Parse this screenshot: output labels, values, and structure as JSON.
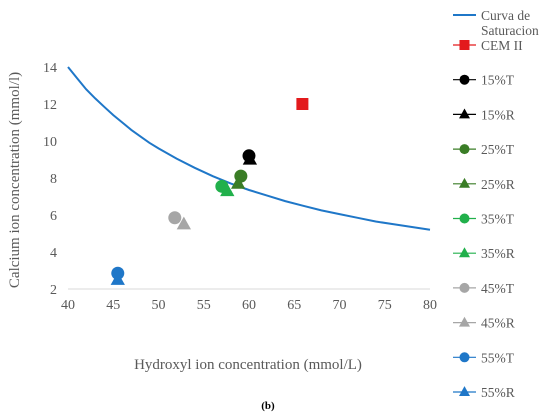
{
  "chart_data": {
    "type": "scatter",
    "caption": "(b)",
    "xlabel": "Hydroxyl ion concentration (mmol/L)",
    "ylabel": "Calcium ion concentration (mmol/l)",
    "xlim": [
      40,
      80
    ],
    "ylim": [
      2,
      14
    ],
    "xticks": [
      40,
      45,
      50,
      55,
      60,
      65,
      70,
      75,
      80
    ],
    "yticks": [
      2,
      4,
      6,
      8,
      10,
      12,
      14
    ],
    "grid": false,
    "legend_position": "right",
    "curve": {
      "name_lines": [
        "Curva de",
        "Saturacion"
      ],
      "color": "#1f77c8",
      "x": [
        40,
        41,
        42,
        43,
        44,
        45,
        46,
        47,
        48,
        49,
        50,
        52,
        54,
        56,
        58,
        60,
        62,
        64,
        66,
        68,
        70,
        72,
        74,
        76,
        78,
        80
      ],
      "y": [
        14.0,
        13.4,
        12.8,
        12.3,
        11.85,
        11.4,
        11.0,
        10.6,
        10.25,
        9.9,
        9.6,
        9.05,
        8.55,
        8.1,
        7.7,
        7.35,
        7.05,
        6.75,
        6.5,
        6.25,
        6.05,
        5.85,
        5.65,
        5.5,
        5.35,
        5.2
      ]
    },
    "series": [
      {
        "name": "CEM II",
        "marker": "square",
        "color": "#e31a1c",
        "x": 65.9,
        "y": 12.0
      },
      {
        "name": "15%T",
        "marker": "circle",
        "color": "#000000",
        "x": 60.0,
        "y": 9.2
      },
      {
        "name": "15%R",
        "marker": "triangle",
        "color": "#000000",
        "x": 60.1,
        "y": 9.0
      },
      {
        "name": "25%T",
        "marker": "circle",
        "color": "#3a7d26",
        "x": 59.1,
        "y": 8.1
      },
      {
        "name": "25%R",
        "marker": "triangle",
        "color": "#3a7d26",
        "x": 58.8,
        "y": 7.7
      },
      {
        "name": "35%T",
        "marker": "circle",
        "color": "#21b04b",
        "x": 57.0,
        "y": 7.55
      },
      {
        "name": "35%R",
        "marker": "triangle",
        "color": "#21b04b",
        "x": 57.6,
        "y": 7.3
      },
      {
        "name": "45%T",
        "marker": "circle",
        "color": "#a6a6a6",
        "x": 51.8,
        "y": 5.85
      },
      {
        "name": "45%R",
        "marker": "triangle",
        "color": "#a6a6a6",
        "x": 52.8,
        "y": 5.5
      },
      {
        "name": "55%T",
        "marker": "circle",
        "color": "#1f77c8",
        "x": 45.5,
        "y": 2.85
      },
      {
        "name": "55%R",
        "marker": "triangle",
        "color": "#1f77c8",
        "x": 45.5,
        "y": 2.5
      }
    ]
  }
}
